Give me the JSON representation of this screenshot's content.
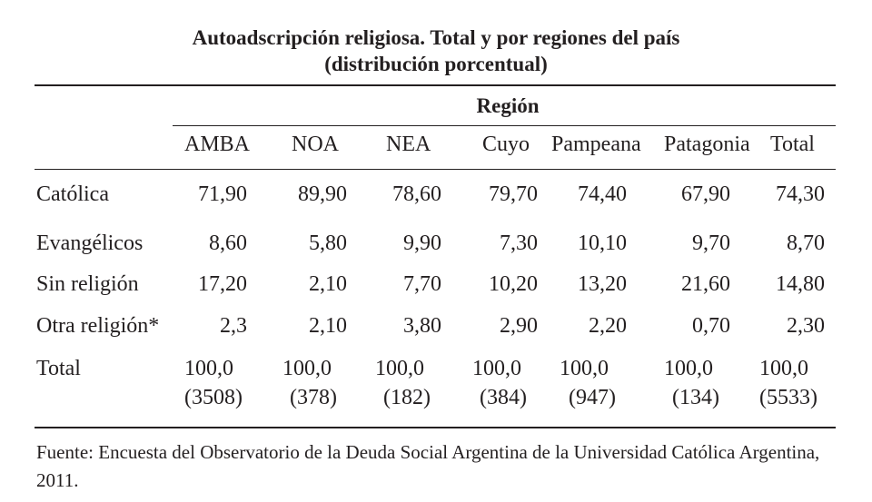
{
  "title_line1": "Autoadscripción religiosa. Total y por regiones del país",
  "title_line2": "(distribución porcentual)",
  "region_header": "Región",
  "columns": [
    "AMBA",
    "NOA",
    "NEA",
    "Cuyo",
    "Pampeana",
    "Patagonia",
    "Total"
  ],
  "rows": [
    {
      "label": "Católica",
      "values": [
        "71,90",
        "89,90",
        "78,60",
        "79,70",
        "74,40",
        "67,90",
        "74,30"
      ]
    },
    {
      "label": "Evangélicos",
      "values": [
        "8,60",
        "5,80",
        "9,90",
        "7,30",
        "10,10",
        "9,70",
        "8,70"
      ]
    },
    {
      "label": "Sin religión",
      "values": [
        "17,20",
        "2,10",
        "7,70",
        "10,20",
        "13,20",
        "21,60",
        "14,80"
      ]
    },
    {
      "label": "Otra religión*",
      "values": [
        "2,3",
        "2,10",
        "3,80",
        "2,90",
        "2,20",
        "0,70",
        "2,30"
      ]
    }
  ],
  "total_row": {
    "label": "Total",
    "values": [
      "100,0",
      "100,0",
      "100,0",
      "100,0",
      "100,0",
      "100,0",
      "100,0"
    ],
    "counts": [
      "(3508)",
      "(378)",
      "(182)",
      "(384)",
      "(947)",
      "(134)",
      "(5533)"
    ]
  },
  "source": "Fuente: Encuesta del Observatorio de la Deuda Social Argentina de la Universidad Católica Argentina, 2011."
}
